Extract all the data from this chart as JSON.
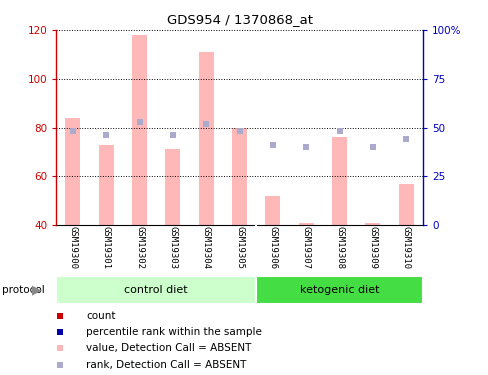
{
  "title": "GDS954 / 1370868_at",
  "samples": [
    "GSM19300",
    "GSM19301",
    "GSM19302",
    "GSM19303",
    "GSM19304",
    "GSM19305",
    "GSM19306",
    "GSM19307",
    "GSM19308",
    "GSM19309",
    "GSM19310"
  ],
  "bar_values": [
    84,
    73,
    118,
    71,
    111,
    80,
    52,
    41,
    76,
    41,
    57
  ],
  "rank_values": [
    48,
    46,
    53,
    46,
    52,
    48,
    41,
    40,
    48,
    40,
    44
  ],
  "bar_color": "#ffb8b8",
  "rank_color": "#aaaacc",
  "bar_bottom": 40,
  "ylim_left": [
    40,
    120
  ],
  "ylim_right": [
    0,
    100
  ],
  "yticks_left": [
    40,
    60,
    80,
    100,
    120
  ],
  "yticks_right": [
    0,
    25,
    50,
    75,
    100
  ],
  "ytick_labels_right": [
    "0",
    "25",
    "50",
    "75",
    "100%"
  ],
  "control_group": {
    "label": "control diet",
    "indices": [
      0,
      1,
      2,
      3,
      4,
      5
    ],
    "color": "#ccffcc"
  },
  "keto_group": {
    "label": "ketogenic diet",
    "indices": [
      6,
      7,
      8,
      9,
      10
    ],
    "color": "#44dd44"
  },
  "protocol_label": "protocol",
  "legend_items": [
    {
      "color": "#cc0000",
      "label": "count"
    },
    {
      "color": "#0000aa",
      "label": "percentile rank within the sample"
    },
    {
      "color": "#ffb8b8",
      "label": "value, Detection Call = ABSENT"
    },
    {
      "color": "#aaaacc",
      "label": "rank, Detection Call = ABSENT"
    }
  ],
  "left_axis_color": "#cc0000",
  "right_axis_color": "#0000bb",
  "label_bg": "#d8d8d8",
  "plot_bg": "white",
  "fig_bg": "white"
}
